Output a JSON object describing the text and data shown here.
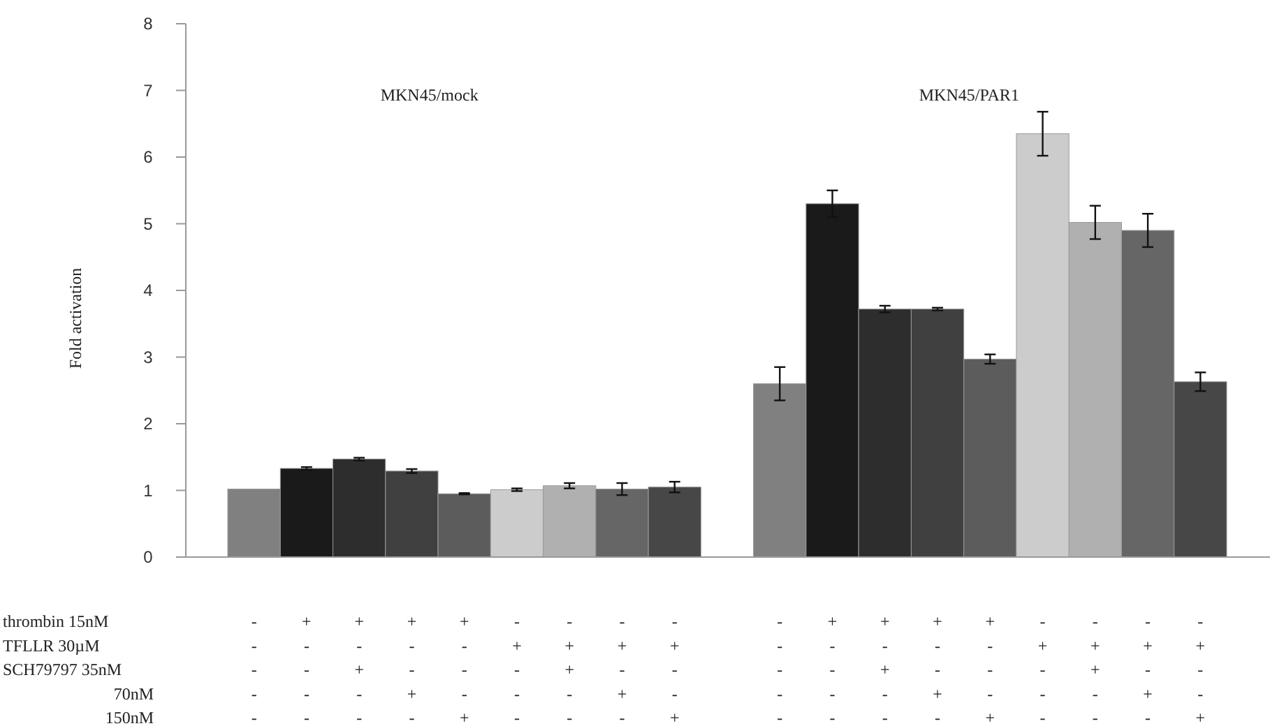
{
  "chart_data": {
    "type": "bar",
    "ylabel": "Fold activation",
    "categories": [
      "-\n-\n-\n-\n-",
      "+\n-\n-\n-\n-",
      "+\n-\n+\n-\n-",
      "+\n-\n-\n+\n-",
      "+\n-\n-\n-\n+",
      "-\n+\n-\n-\n-",
      "-\n+\n+\n-\n-",
      "-\n+\n-\n+\n-",
      "-\n+\n-\n-\n+",
      null,
      "-\n-\n-\n-\n-",
      "+\n-\n-\n-\n-",
      "+\n-\n+\n-\n-",
      "+\n-\n-\n+\n-",
      "+\n-\n-\n-\n+",
      "-\n+\n-\n-\n-",
      "-\n+\n+\n-\n-",
      "-\n+\n-\n+\n-",
      "-\n+\n-\n-\n+"
    ],
    "values": [
      1.02,
      1.33,
      1.47,
      1.29,
      0.95,
      1.01,
      1.07,
      1.02,
      1.05,
      null,
      2.6,
      5.3,
      3.72,
      3.72,
      2.97,
      6.35,
      5.02,
      4.9,
      2.63
    ],
    "errors": [
      null,
      0.02,
      0.02,
      0.03,
      0.01,
      0.02,
      0.04,
      0.09,
      0.08,
      null,
      0.25,
      0.2,
      0.05,
      0.02,
      0.07,
      0.33,
      0.25,
      0.25,
      0.14
    ],
    "colors": [
      "#808080",
      "#1a1a1a",
      "#2d2d2d",
      "#404040",
      "#5c5c5c",
      "#cccccc",
      "#b0b0b0",
      "#666666",
      "#474747",
      null,
      "#808080",
      "#1a1a1a",
      "#2d2d2d",
      "#404040",
      "#5c5c5c",
      "#cccccc",
      "#b0b0b0",
      "#666666",
      "#474747"
    ],
    "ylim": [
      0,
      8
    ],
    "yticks": [
      0,
      1,
      2,
      3,
      4,
      5,
      6,
      7,
      8
    ],
    "grid": false,
    "annotations": [
      "MKN45/mock",
      "MKN45/PAR1",
      "thrombin 15nM",
      "TFLLR 30µM",
      "SCH79797 35nM",
      "70nM",
      "150nM"
    ]
  }
}
